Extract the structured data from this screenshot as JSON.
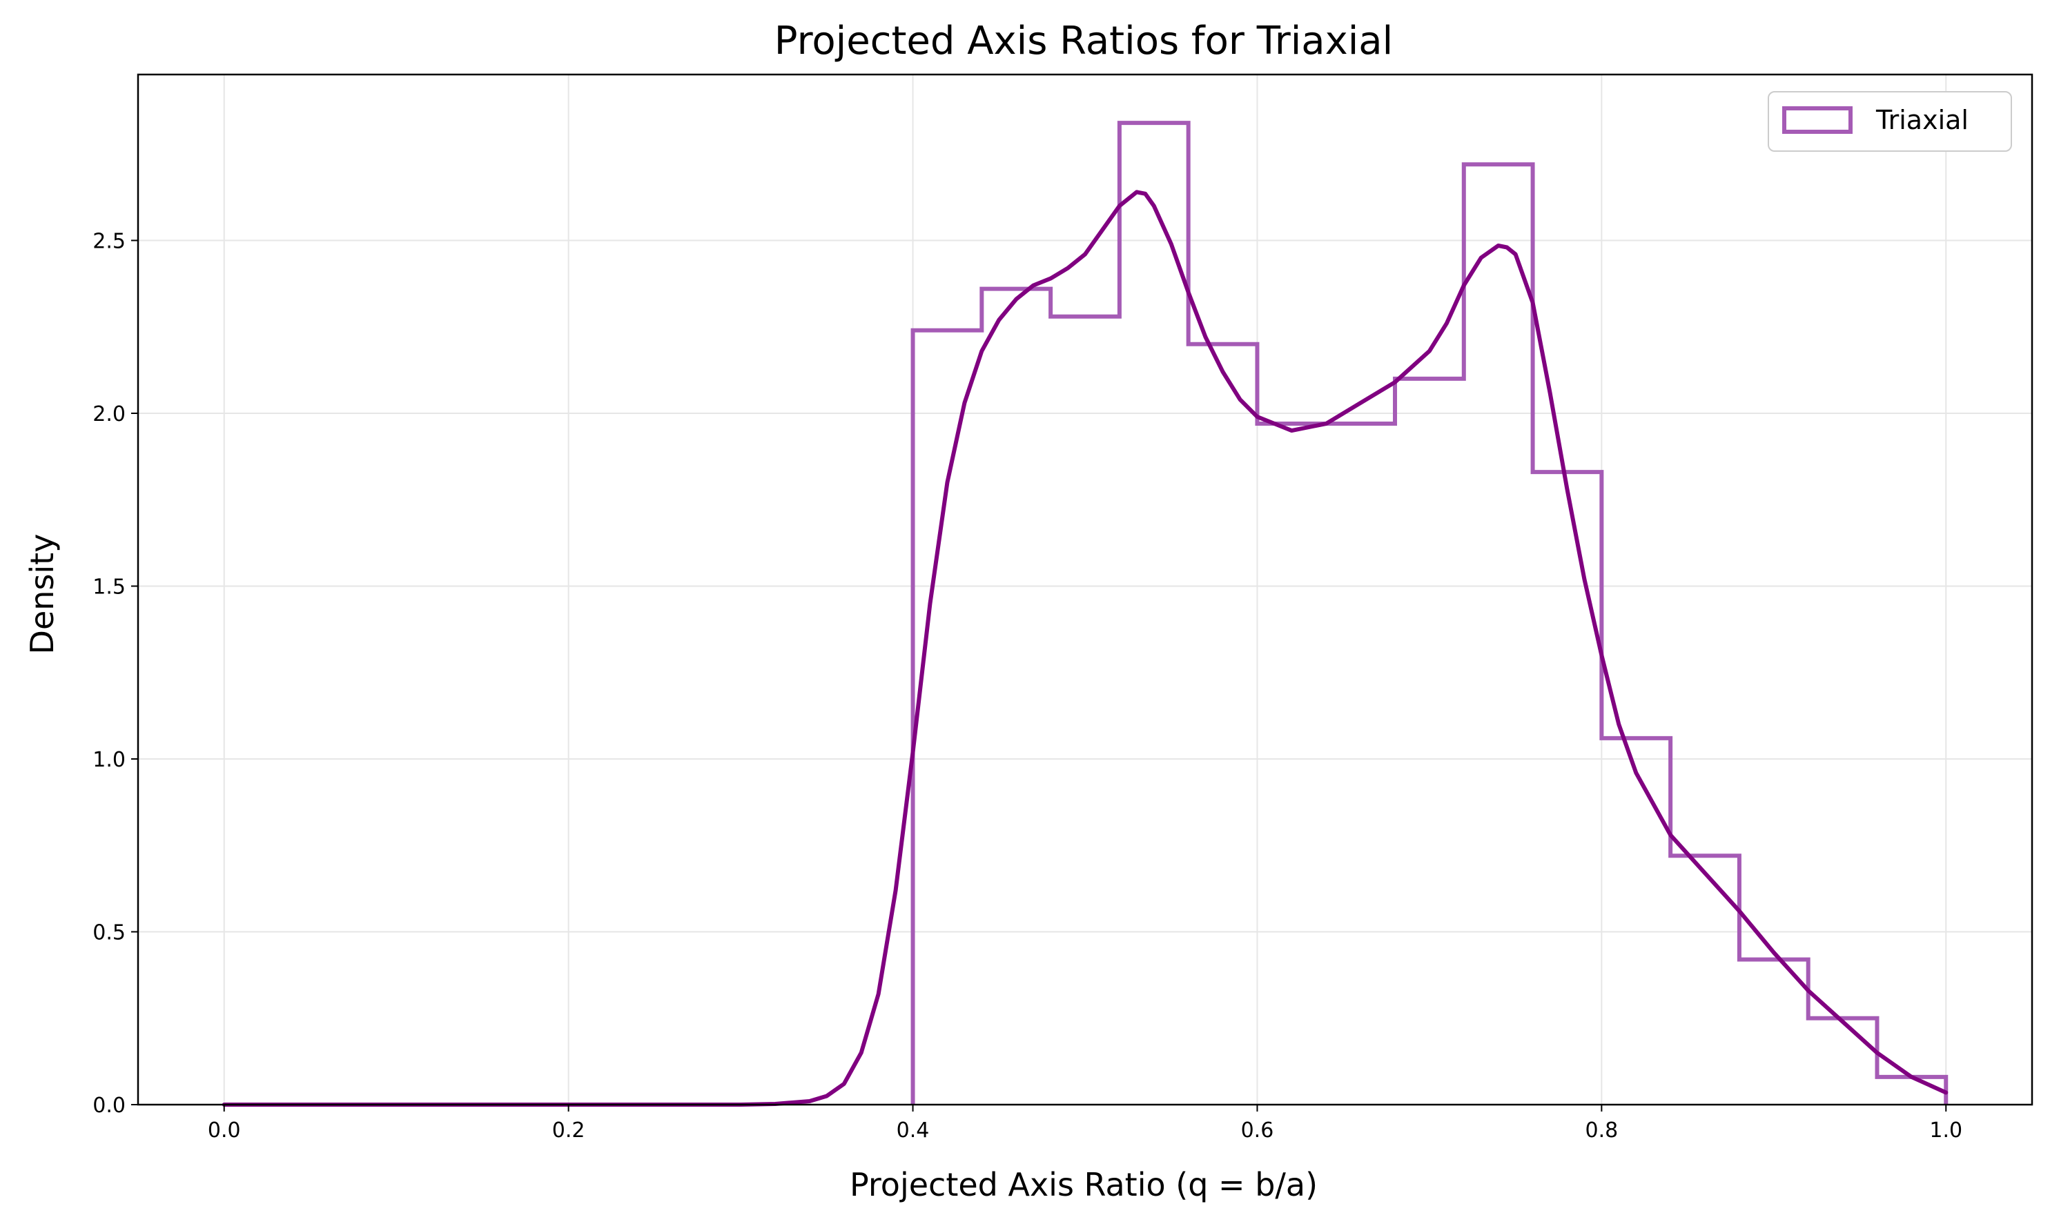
{
  "chart_data": {
    "type": "histogram",
    "title": "Projected Axis Ratios for Triaxial",
    "xlabel": "Projected Axis Ratio (q = b/a)",
    "ylabel": "Density",
    "xlim": [
      -0.05,
      1.05
    ],
    "ylim": [
      0,
      2.98
    ],
    "xticks": [
      0.0,
      0.2,
      0.4,
      0.6,
      0.8,
      1.0
    ],
    "xtick_labels": [
      "0.0",
      "0.2",
      "0.4",
      "0.6",
      "0.8",
      "1.0"
    ],
    "yticks": [
      0.0,
      0.5,
      1.0,
      1.5,
      2.0,
      2.5
    ],
    "ytick_labels": [
      "0.0",
      "0.5",
      "1.0",
      "1.5",
      "2.0",
      "2.5"
    ],
    "grid": true,
    "legend_position": "top-right",
    "colors": {
      "hist": "#A55BB5",
      "kde": "#800080",
      "grid": "#E6E6E6"
    },
    "series": [
      {
        "name": "Triaxial",
        "type": "step-histogram",
        "bin_edges": [
          0.4,
          0.44,
          0.48,
          0.52,
          0.56,
          0.6,
          0.64,
          0.68,
          0.72,
          0.76,
          0.8,
          0.84,
          0.88,
          0.92,
          0.96,
          1.0
        ],
        "values": [
          2.24,
          2.36,
          2.28,
          2.84,
          2.2,
          1.97,
          1.97,
          2.1,
          2.72,
          1.83,
          1.06,
          0.72,
          0.42,
          0.25,
          0.08
        ]
      },
      {
        "type": "kde",
        "x": [
          0.0,
          0.1,
          0.2,
          0.3,
          0.32,
          0.34,
          0.35,
          0.36,
          0.37,
          0.38,
          0.39,
          0.4,
          0.41,
          0.42,
          0.43,
          0.44,
          0.45,
          0.46,
          0.47,
          0.48,
          0.49,
          0.5,
          0.51,
          0.52,
          0.53,
          0.535,
          0.54,
          0.55,
          0.56,
          0.57,
          0.58,
          0.59,
          0.6,
          0.62,
          0.64,
          0.66,
          0.68,
          0.7,
          0.71,
          0.72,
          0.73,
          0.74,
          0.745,
          0.75,
          0.76,
          0.77,
          0.78,
          0.79,
          0.8,
          0.81,
          0.82,
          0.84,
          0.86,
          0.88,
          0.9,
          0.92,
          0.94,
          0.96,
          0.98,
          1.0
        ],
        "y": [
          0.0,
          0.0,
          0.0,
          0.0,
          0.002,
          0.01,
          0.025,
          0.06,
          0.15,
          0.32,
          0.62,
          1.02,
          1.45,
          1.8,
          2.03,
          2.18,
          2.27,
          2.33,
          2.37,
          2.39,
          2.42,
          2.46,
          2.53,
          2.6,
          2.64,
          2.635,
          2.6,
          2.49,
          2.35,
          2.22,
          2.12,
          2.04,
          1.99,
          1.95,
          1.97,
          2.03,
          2.09,
          2.18,
          2.26,
          2.37,
          2.45,
          2.485,
          2.48,
          2.46,
          2.32,
          2.06,
          1.78,
          1.52,
          1.3,
          1.1,
          0.96,
          0.78,
          0.67,
          0.56,
          0.44,
          0.33,
          0.24,
          0.15,
          0.08,
          0.035
        ]
      }
    ]
  }
}
